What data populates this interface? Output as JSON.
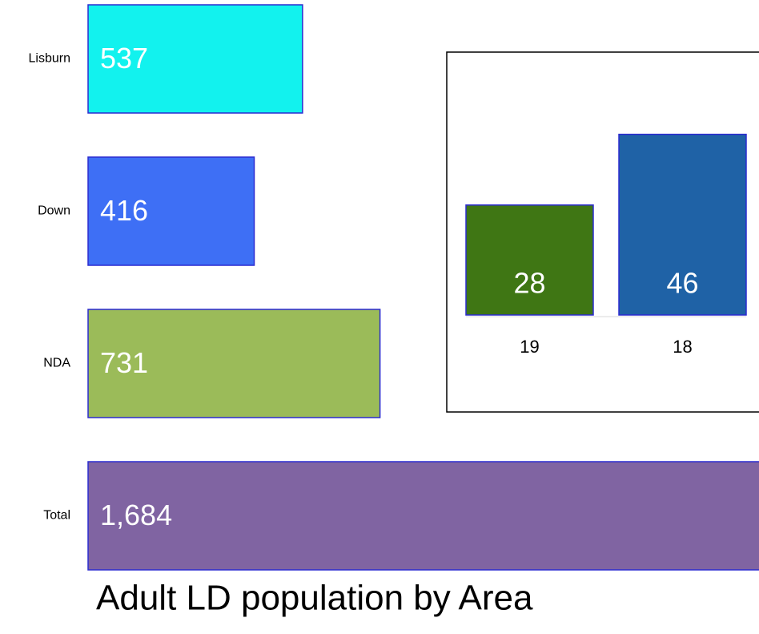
{
  "chart_data": [
    {
      "type": "hbar",
      "title": "Adult LD population by Area",
      "categories": [
        "Lisburn",
        "Down",
        "NDA",
        "Total"
      ],
      "values": [
        537,
        416,
        731,
        1684
      ],
      "value_labels": [
        "537",
        "416",
        "731",
        "1,684"
      ],
      "colors": [
        "#12f2ee",
        "#3e6ff5",
        "#9bbb59",
        "#8064a2"
      ],
      "xlim": [
        0,
        1680
      ]
    },
    {
      "type": "bar",
      "categories": [
        "19",
        "18"
      ],
      "values": [
        28,
        46
      ],
      "colors": [
        "#3f7614",
        "#1f62a6"
      ],
      "ylim": [
        0,
        50
      ]
    }
  ]
}
